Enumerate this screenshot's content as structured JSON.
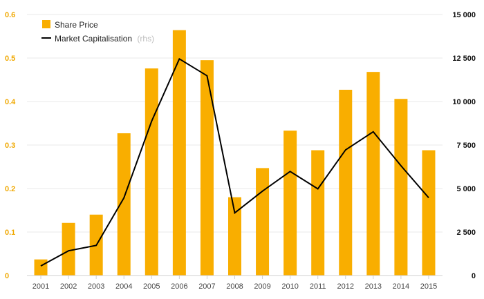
{
  "chart_data": {
    "type": "bar",
    "categories": [
      "2001",
      "2002",
      "2003",
      "2004",
      "2005",
      "2006",
      "2007",
      "2008",
      "2009",
      "2010",
      "2011",
      "2012",
      "2013",
      "2014",
      "2015"
    ],
    "series": [
      {
        "name": "Share Price",
        "type": "bar",
        "axis": "left",
        "color": "#F9AE00",
        "values": [
          0.037,
          0.121,
          0.14,
          0.327,
          0.476,
          0.564,
          0.495,
          0.18,
          0.247,
          0.333,
          0.288,
          0.427,
          0.468,
          0.406,
          0.288
        ]
      },
      {
        "name": "Market Capitalisation",
        "name_suffix": "(rhs)",
        "type": "line",
        "axis": "right",
        "color": "#000000",
        "values": [
          550,
          1420,
          1730,
          4460,
          8870,
          12450,
          11480,
          3600,
          4850,
          5980,
          4980,
          7220,
          8260,
          6310,
          4470
        ]
      }
    ],
    "y_left": {
      "ylim": [
        0,
        0.6
      ],
      "ticks": [
        "0",
        "0.1",
        "0.2",
        "0.3",
        "0.4",
        "0.5",
        "0.6"
      ]
    },
    "y_right": {
      "ylim": [
        0,
        15000
      ],
      "ticks": [
        "0",
        "2 500",
        "5 000",
        "7 500",
        "10 000",
        "12 500",
        "15 000"
      ]
    },
    "grid": true,
    "legend_position": "top-left"
  }
}
